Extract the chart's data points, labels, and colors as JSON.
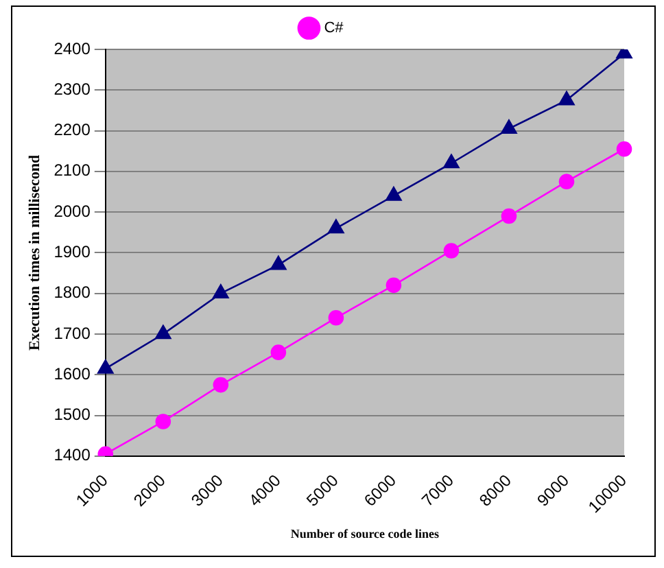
{
  "chart_data": {
    "type": "line",
    "xlabel": "Number of source code lines",
    "ylabel": "Execution times in millisecond",
    "categories": [
      "1000",
      "2000",
      "3000",
      "4000",
      "5000",
      "6000",
      "7000",
      "8000",
      "9000",
      "10000"
    ],
    "series": [
      {
        "color": "#000080",
        "marker": "triangle",
        "values": [
          1615,
          1700,
          1800,
          1870,
          1960,
          2040,
          2120,
          2205,
          2275,
          2390
        ]
      },
      {
        "name": "C#",
        "color": "#ff00ff",
        "marker": "circle",
        "values": [
          1405,
          1485,
          1575,
          1655,
          1740,
          1820,
          1905,
          1990,
          2075,
          2155
        ]
      }
    ],
    "ylim": [
      1400,
      2400
    ],
    "yticks": [
      1400,
      1500,
      1600,
      1700,
      1800,
      1900,
      2000,
      2100,
      2200,
      2300,
      2400
    ],
    "grid": "y",
    "legend": "top"
  }
}
